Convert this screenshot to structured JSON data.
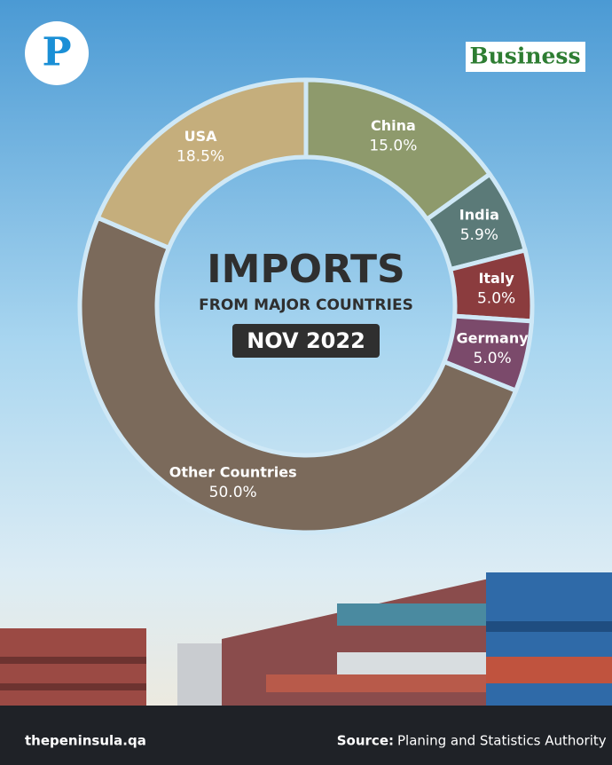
{
  "brand": {
    "logo": "P",
    "section": "Business"
  },
  "chart_data": {
    "type": "donut",
    "title": "IMPORTS",
    "subtitle": "FROM MAJOR COUNTRIES",
    "annotation": "NOV 2022",
    "categories": [
      "China",
      "India",
      "Italy",
      "Germany",
      "Other Countries",
      "USA"
    ],
    "values": [
      15.0,
      5.9,
      5.0,
      5.0,
      50.0,
      18.5
    ],
    "value_labels": [
      "15.0%",
      "5.9%",
      "5.0%",
      "5.0%",
      "50.0%",
      "18.5%"
    ],
    "colors": [
      "#8e9a6c",
      "#5b7a78",
      "#8b3c3e",
      "#7b4a6b",
      "#7b6a5b",
      "#c5ae7c"
    ]
  },
  "footer": {
    "website": "thepeninsula.qa",
    "source_label": "Source:",
    "source": "Planing and Statistics Authority"
  }
}
